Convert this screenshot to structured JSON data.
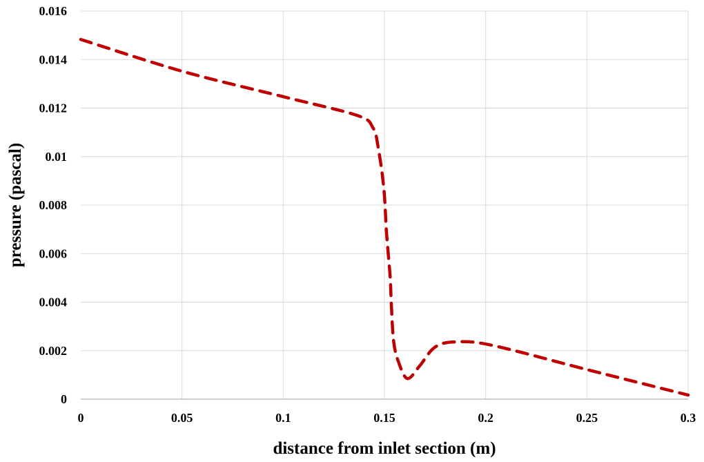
{
  "chart_data": {
    "type": "line",
    "title": "",
    "xlabel": "distance from inlet section (m)",
    "ylabel": "pressure (pascal)",
    "xlim": [
      0,
      0.3
    ],
    "ylim": [
      0,
      0.016
    ],
    "xticks": [
      "0",
      "0.05",
      "0.1",
      "0.15",
      "0.2",
      "0.25",
      "0.3"
    ],
    "yticks": [
      "0",
      "0.002",
      "0.004",
      "0.006",
      "0.008",
      "0.01",
      "0.012",
      "0.014",
      "0.016"
    ],
    "grid": true,
    "legend": "none",
    "series": [
      {
        "color": "#c00000",
        "style": "dashed",
        "x": [
          0,
          0.05,
          0.1,
          0.1364,
          0.1443,
          0.147,
          0.1497,
          0.1511,
          0.1528,
          0.1534,
          0.1545,
          0.1568,
          0.1613,
          0.1674,
          0.1749,
          0.1851,
          0.2032,
          0.25,
          0.3
        ],
        "y": [
          0.01483,
          0.01352,
          0.01247,
          0.0117,
          0.01119,
          0.01033,
          0.00868,
          0.00678,
          0.00507,
          0.00393,
          0.00242,
          0.00157,
          0.00085,
          0.00137,
          0.00214,
          0.00236,
          0.00222,
          0.00122,
          0.00017
        ]
      }
    ]
  }
}
